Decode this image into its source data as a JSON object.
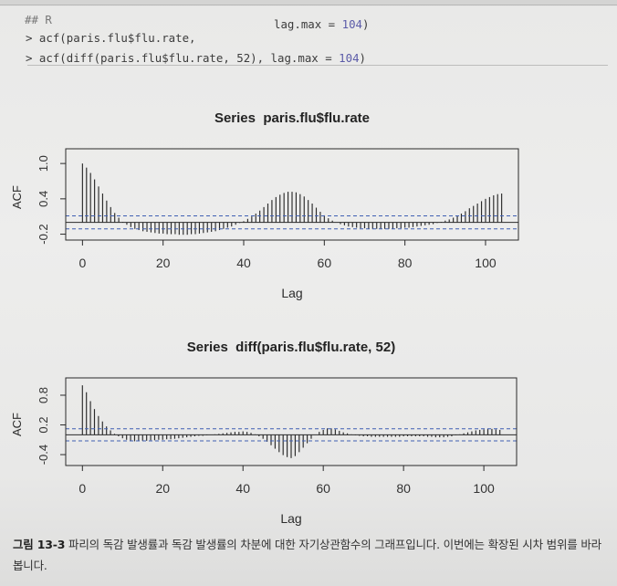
{
  "code": {
    "comment": "## R",
    "line1": {
      "call": "> acf(paris.flu$flu.rate,",
      "arg": "lag.max = ",
      "num": "104",
      "close": ")"
    },
    "line2": {
      "call": "> acf(diff(paris.flu$flu.rate, 52), lag.max = ",
      "num": "104",
      "close": ")"
    }
  },
  "colors": {
    "ink": "#2a2a2a",
    "ci_line": "#3f5fb3",
    "code_number": "#5b5ba8"
  },
  "chart_data": [
    {
      "type": "bar",
      "title": "Series  paris.flu$flu.rate",
      "xlabel": "Lag",
      "ylabel": "ACF",
      "xlim": [
        -4.16,
        108.16
      ],
      "ylim": [
        -0.3,
        1.25
      ],
      "xticks": [
        0,
        20,
        40,
        60,
        80,
        100
      ],
      "yticks": [
        -0.2,
        0.4,
        1.0
      ],
      "ytick_labels": [
        "-0.2",
        "0.4",
        "1.0"
      ],
      "ci_limit": 0.111,
      "grid": false,
      "x": [
        0,
        1,
        2,
        3,
        4,
        5,
        6,
        7,
        8,
        9,
        10,
        11,
        12,
        13,
        14,
        15,
        16,
        17,
        18,
        19,
        20,
        21,
        22,
        23,
        24,
        25,
        26,
        27,
        28,
        29,
        30,
        31,
        32,
        33,
        34,
        35,
        36,
        37,
        38,
        39,
        40,
        41,
        42,
        43,
        44,
        45,
        46,
        47,
        48,
        49,
        50,
        51,
        52,
        53,
        54,
        55,
        56,
        57,
        58,
        59,
        60,
        61,
        62,
        63,
        64,
        65,
        66,
        67,
        68,
        69,
        70,
        71,
        72,
        73,
        74,
        75,
        76,
        77,
        78,
        79,
        80,
        81,
        82,
        83,
        84,
        85,
        86,
        87,
        88,
        89,
        90,
        91,
        92,
        93,
        94,
        95,
        96,
        97,
        98,
        99,
        100,
        101,
        102,
        103,
        104
      ],
      "values": [
        1.0,
        0.93,
        0.84,
        0.73,
        0.61,
        0.49,
        0.37,
        0.26,
        0.16,
        0.08,
        0.01,
        -0.04,
        -0.08,
        -0.11,
        -0.13,
        -0.15,
        -0.16,
        -0.17,
        -0.18,
        -0.19,
        -0.19,
        -0.2,
        -0.2,
        -0.2,
        -0.21,
        -0.21,
        -0.21,
        -0.2,
        -0.2,
        -0.19,
        -0.18,
        -0.17,
        -0.16,
        -0.15,
        -0.13,
        -0.11,
        -0.09,
        -0.07,
        -0.04,
        -0.01,
        0.02,
        0.06,
        0.1,
        0.15,
        0.2,
        0.26,
        0.32,
        0.38,
        0.43,
        0.47,
        0.5,
        0.52,
        0.52,
        0.51,
        0.48,
        0.44,
        0.38,
        0.32,
        0.25,
        0.18,
        0.12,
        0.07,
        0.03,
        0.0,
        -0.03,
        -0.05,
        -0.07,
        -0.08,
        -0.09,
        -0.1,
        -0.1,
        -0.11,
        -0.11,
        -0.11,
        -0.11,
        -0.11,
        -0.11,
        -0.11,
        -0.1,
        -0.1,
        -0.09,
        -0.09,
        -0.08,
        -0.07,
        -0.06,
        -0.05,
        -0.04,
        -0.03,
        -0.01,
        0.01,
        0.03,
        0.05,
        0.08,
        0.11,
        0.15,
        0.19,
        0.24,
        0.28,
        0.32,
        0.36,
        0.4,
        0.43,
        0.46,
        0.48,
        0.49
      ]
    },
    {
      "type": "bar",
      "title": "Series  diff(paris.flu$flu.rate, 52)",
      "xlabel": "Lag",
      "ylabel": "ACF",
      "xlim": [
        -4.16,
        108.16
      ],
      "ylim": [
        -0.62,
        1.15
      ],
      "xticks": [
        0,
        20,
        40,
        60,
        80,
        100
      ],
      "yticks": [
        -0.4,
        0.2,
        0.8
      ],
      "ytick_labels": [
        "-0.4",
        "0.2",
        "0.8"
      ],
      "ci_limit": 0.122,
      "grid": false,
      "x": [
        0,
        1,
        2,
        3,
        4,
        5,
        6,
        7,
        8,
        9,
        10,
        11,
        12,
        13,
        14,
        15,
        16,
        17,
        18,
        19,
        20,
        21,
        22,
        23,
        24,
        25,
        26,
        27,
        28,
        29,
        30,
        31,
        32,
        33,
        34,
        35,
        36,
        37,
        38,
        39,
        40,
        41,
        42,
        43,
        44,
        45,
        46,
        47,
        48,
        49,
        50,
        51,
        52,
        53,
        54,
        55,
        56,
        57,
        58,
        59,
        60,
        61,
        62,
        63,
        64,
        65,
        66,
        67,
        68,
        69,
        70,
        71,
        72,
        73,
        74,
        75,
        76,
        77,
        78,
        79,
        80,
        81,
        82,
        83,
        84,
        85,
        86,
        87,
        88,
        89,
        90,
        91,
        92,
        93,
        94,
        95,
        96,
        97,
        98,
        99,
        100,
        101,
        102,
        103,
        104
      ],
      "values": [
        1.0,
        0.86,
        0.68,
        0.52,
        0.38,
        0.27,
        0.17,
        0.09,
        0.02,
        -0.03,
        -0.07,
        -0.1,
        -0.12,
        -0.13,
        -0.13,
        -0.12,
        -0.12,
        -0.11,
        -0.11,
        -0.1,
        -0.1,
        -0.09,
        -0.09,
        -0.08,
        -0.07,
        -0.06,
        -0.05,
        -0.04,
        -0.03,
        -0.02,
        -0.02,
        -0.01,
        0.0,
        0.01,
        0.02,
        0.03,
        0.04,
        0.05,
        0.06,
        0.06,
        0.07,
        0.06,
        0.04,
        0.01,
        -0.03,
        -0.08,
        -0.14,
        -0.21,
        -0.28,
        -0.35,
        -0.41,
        -0.45,
        -0.47,
        -0.43,
        -0.35,
        -0.26,
        -0.17,
        -0.08,
        0.0,
        0.06,
        0.1,
        0.13,
        0.13,
        0.11,
        0.08,
        0.05,
        0.03,
        0.01,
        -0.01,
        -0.02,
        -0.03,
        -0.03,
        -0.04,
        -0.04,
        -0.04,
        -0.04,
        -0.04,
        -0.04,
        -0.04,
        -0.04,
        -0.03,
        -0.03,
        -0.03,
        -0.03,
        -0.03,
        -0.03,
        -0.04,
        -0.04,
        -0.05,
        -0.05,
        -0.05,
        -0.04,
        -0.03,
        -0.01,
        0.01,
        0.03,
        0.05,
        0.07,
        0.09,
        0.1,
        0.11,
        0.12,
        0.12,
        0.11,
        0.1
      ]
    }
  ],
  "caption": {
    "label": "그림 13-3",
    "text": "파리의 독감 발생률과 독감 발생률의 차분에 대한 자기상관함수의 그래프입니다. 이번에는 확장된 시차 범위를 바라봅니다."
  }
}
